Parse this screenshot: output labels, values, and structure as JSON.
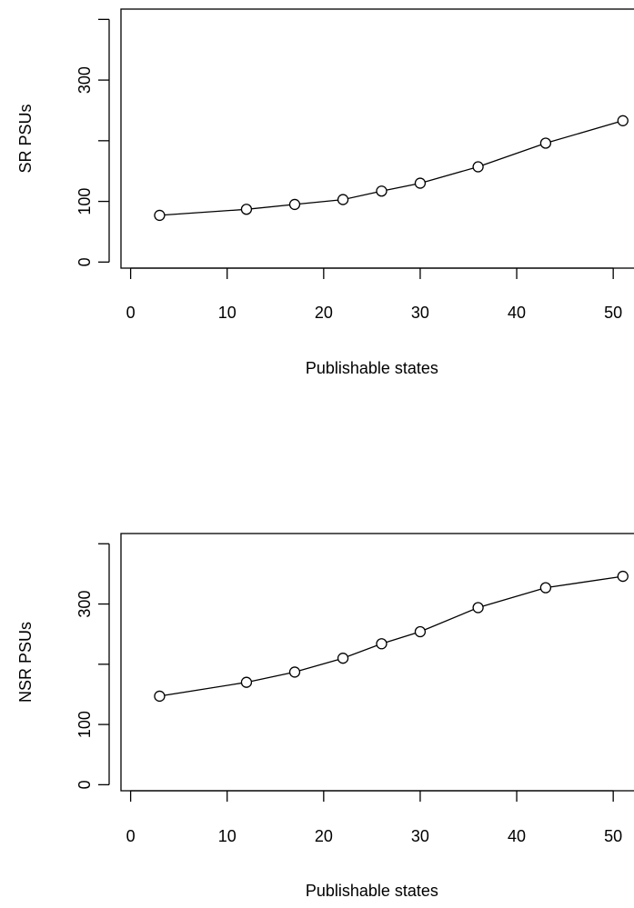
{
  "chart_data": [
    {
      "type": "line",
      "xlabel": "Publishable states",
      "ylabel": "SR PSUs",
      "x": [
        3,
        12,
        17,
        22,
        26,
        30,
        36,
        43,
        51
      ],
      "values": [
        77,
        87,
        95,
        103,
        117,
        130,
        157,
        196,
        233
      ],
      "xlim": [
        -1,
        53
      ],
      "ylim": [
        -10,
        417
      ],
      "x_ticks": [
        0,
        10,
        20,
        30,
        40,
        50
      ],
      "y_ticks": [
        0,
        100,
        200,
        300,
        400
      ],
      "y_tick_labels": [
        "0",
        "100",
        "",
        "300",
        ""
      ],
      "grid": false
    },
    {
      "type": "line",
      "xlabel": "Publishable states",
      "ylabel": "NSR PSUs",
      "x": [
        3,
        12,
        17,
        22,
        26,
        30,
        36,
        43,
        51
      ],
      "values": [
        147,
        170,
        187,
        210,
        234,
        254,
        294,
        327,
        346
      ],
      "xlim": [
        -1,
        53
      ],
      "ylim": [
        -10,
        417
      ],
      "x_ticks": [
        0,
        10,
        20,
        30,
        40,
        50
      ],
      "y_ticks": [
        0,
        100,
        200,
        300,
        400
      ],
      "y_tick_labels": [
        "0",
        "100",
        "",
        "300",
        ""
      ],
      "grid": false
    }
  ]
}
